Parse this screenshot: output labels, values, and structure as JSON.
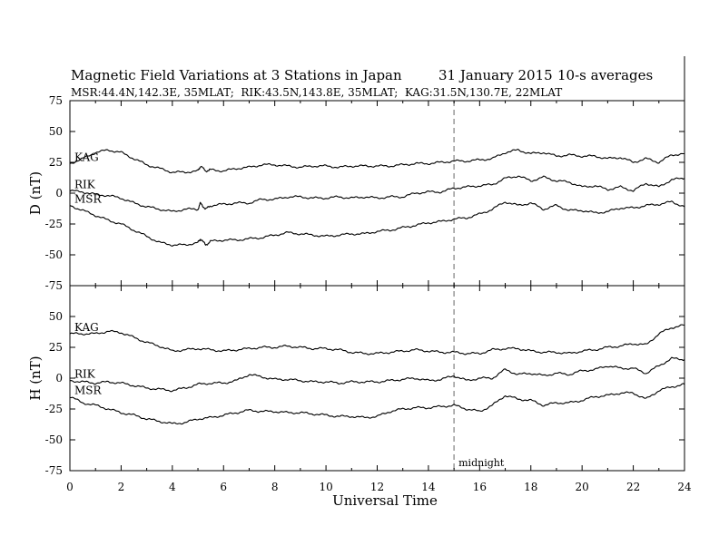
{
  "chart_data": {
    "type": "line",
    "title": "Magnetic Field Variations at 3 Stations in Japan",
    "date": "31 January 2015",
    "averaging": "10-s averages",
    "subtitle": "MSR:44.4N,142.3E, 35MLAT;  RIK:43.5N,143.8E, 35MLAT;  KAG:31.5N,130.7E, 22MLAT",
    "xlabel": "Universal Time",
    "xlim": [
      0,
      24
    ],
    "xticks": [
      0,
      2,
      4,
      6,
      8,
      10,
      12,
      14,
      16,
      18,
      20,
      22,
      24
    ],
    "midnight": {
      "x": 15,
      "label": "midnight"
    },
    "panels": [
      {
        "ylabel": "D (nT)",
        "ylim": [
          -75,
          75
        ],
        "yticks": [
          75,
          50,
          25,
          0,
          -25,
          -50,
          -75
        ],
        "series": [
          {
            "name": "KAG",
            "x": [
              0,
              0.5,
              1,
              1.5,
              2,
              2.5,
              3,
              3.5,
              4,
              4.5,
              5,
              5.1,
              5.3,
              5.5,
              6,
              6.5,
              7,
              7.5,
              8,
              8.5,
              9,
              9.5,
              10,
              10.5,
              11,
              11.5,
              12,
              12.5,
              13,
              13.5,
              14,
              14.5,
              15,
              15.5,
              16,
              16.5,
              17,
              17.5,
              18,
              18.5,
              19,
              19.5,
              20,
              20.5,
              21,
              21.5,
              22,
              22.5,
              23,
              23.5,
              24
            ],
            "y": [
              24,
              28,
              33,
              35,
              33,
              28,
              23,
              20,
              17,
              17,
              18,
              22,
              18,
              19,
              18,
              20,
              21,
              23,
              23,
              22,
              21,
              22,
              22,
              21,
              22,
              22,
              22,
              22,
              23,
              24,
              24,
              25,
              26,
              26,
              27,
              28,
              33,
              35,
              32,
              33,
              30,
              31,
              30,
              30,
              28,
              29,
              25,
              28,
              25,
              31,
              32
            ]
          },
          {
            "name": "RIK",
            "x": [
              0,
              0.5,
              1,
              1.5,
              2,
              2.5,
              3,
              3.5,
              4,
              4.5,
              5,
              5.1,
              5.3,
              5.5,
              6,
              6.5,
              7,
              7.5,
              8,
              8.5,
              9,
              9.5,
              10,
              10.5,
              11,
              11.5,
              12,
              12.5,
              13,
              13.5,
              14,
              14.5,
              15,
              15.5,
              16,
              16.5,
              17,
              17.5,
              18,
              18.5,
              19,
              19.5,
              20,
              20.5,
              21,
              21.5,
              22,
              22.5,
              23,
              23.5,
              24
            ],
            "y": [
              2,
              1,
              -1,
              -2,
              -4,
              -8,
              -11,
              -13,
              -15,
              -13,
              -13,
              -8,
              -13,
              -10,
              -9,
              -8,
              -8,
              -5,
              -5,
              -3,
              -3,
              -4,
              -4,
              -3,
              -4,
              -3,
              -4,
              -3,
              -3,
              0,
              1,
              1,
              4,
              5,
              6,
              7,
              12,
              14,
              10,
              13,
              10,
              9,
              5,
              6,
              3,
              5,
              2,
              8,
              5,
              11,
              12
            ]
          },
          {
            "name": "MSR",
            "x": [
              0,
              0.5,
              1,
              1.5,
              2,
              2.5,
              3,
              3.5,
              4,
              4.5,
              5,
              5.1,
              5.3,
              5.5,
              6,
              6.5,
              7,
              7.5,
              8,
              8.5,
              9,
              9.5,
              10,
              10.5,
              11,
              11.5,
              12,
              12.5,
              13,
              13.5,
              14,
              14.5,
              15,
              15.5,
              16,
              16.5,
              17,
              17.5,
              18,
              18.5,
              19,
              19.5,
              20,
              20.5,
              21,
              21.5,
              22,
              22.5,
              23,
              23.5,
              24
            ],
            "y": [
              -10,
              -14,
              -18,
              -22,
              -25,
              -30,
              -35,
              -40,
              -42,
              -42,
              -40,
              -37,
              -42,
              -39,
              -38,
              -38,
              -37,
              -36,
              -34,
              -32,
              -33,
              -34,
              -35,
              -34,
              -33,
              -33,
              -31,
              -30,
              -28,
              -26,
              -24,
              -23,
              -21,
              -20,
              -17,
              -13,
              -7,
              -10,
              -8,
              -13,
              -10,
              -14,
              -14,
              -16,
              -15,
              -12,
              -12,
              -10,
              -9,
              -7,
              -11
            ]
          }
        ]
      },
      {
        "ylabel": "H (nT)",
        "ylim": [
          -75,
          75
        ],
        "yticks": [
          50,
          25,
          0,
          -25,
          -50,
          -75
        ],
        "series": [
          {
            "name": "KAG",
            "x": [
              0,
              0.5,
              1,
              1.5,
              2,
              2.5,
              3,
              3.5,
              4,
              4.5,
              5,
              5.5,
              6,
              6.5,
              7,
              7.5,
              8,
              8.5,
              9,
              9.5,
              10,
              10.5,
              11,
              11.5,
              12,
              12.5,
              13,
              13.5,
              14,
              14.5,
              15,
              15.5,
              16,
              16.5,
              17,
              17.5,
              18,
              18.5,
              19,
              19.5,
              20,
              20.5,
              21,
              21.5,
              22,
              22.5,
              23,
              23.5,
              24
            ],
            "y": [
              36,
              36,
              36,
              38,
              37,
              33,
              29,
              26,
              22,
              23,
              24,
              23,
              22,
              23,
              24,
              25,
              25,
              26,
              25,
              24,
              24,
              23,
              21,
              20,
              20,
              21,
              22,
              23,
              22,
              21,
              21,
              20,
              20,
              23,
              24,
              24,
              22,
              21,
              21,
              20,
              22,
              23,
              25,
              26,
              28,
              27,
              36,
              41,
              43
            ]
          },
          {
            "name": "RIK",
            "x": [
              0,
              0.5,
              1,
              1.5,
              2,
              2.5,
              3,
              3.5,
              4,
              4.5,
              5,
              5.5,
              6,
              6.5,
              7,
              7.5,
              8,
              8.5,
              9,
              9.5,
              10,
              10.5,
              11,
              11.5,
              12,
              12.5,
              13,
              13.5,
              14,
              14.5,
              15,
              15.5,
              16,
              16.5,
              17,
              17.5,
              18,
              18.5,
              19,
              19.5,
              20,
              20.5,
              21,
              21.5,
              22,
              22.5,
              23,
              23.5,
              24
            ],
            "y": [
              -2,
              -3,
              -4,
              -3,
              -4,
              -6,
              -8,
              -9,
              -10,
              -8,
              -5,
              -4,
              -4,
              -2,
              3,
              1,
              -1,
              -1,
              -2,
              -3,
              -3,
              -4,
              -3,
              -3,
              -3,
              -2,
              -1,
              0,
              -2,
              -1,
              2,
              -2,
              0,
              0,
              7,
              3,
              4,
              2,
              4,
              3,
              6,
              7,
              10,
              8,
              8,
              4,
              10,
              16,
              15
            ]
          },
          {
            "name": "MSR",
            "x": [
              0,
              0.5,
              1,
              1.5,
              2,
              2.5,
              3,
              3.5,
              4,
              4.5,
              5,
              5.5,
              6,
              6.5,
              7,
              7.5,
              8,
              8.5,
              9,
              9.5,
              10,
              10.5,
              11,
              11.5,
              12,
              12.5,
              13,
              13.5,
              14,
              14.5,
              15,
              15.5,
              16,
              16.5,
              17,
              17.5,
              18,
              18.5,
              19,
              19.5,
              20,
              20.5,
              21,
              21.5,
              22,
              22.5,
              23,
              23.5,
              24
            ],
            "y": [
              -15,
              -20,
              -22,
              -25,
              -28,
              -30,
              -33,
              -35,
              -37,
              -36,
              -33,
              -32,
              -30,
              -28,
              -26,
              -27,
              -27,
              -28,
              -28,
              -29,
              -30,
              -31,
              -31,
              -32,
              -31,
              -27,
              -25,
              -24,
              -24,
              -23,
              -22,
              -25,
              -27,
              -22,
              -14,
              -17,
              -18,
              -22,
              -20,
              -20,
              -18,
              -15,
              -14,
              -12,
              -12,
              -17,
              -10,
              -7,
              -5
            ]
          }
        ]
      }
    ]
  }
}
